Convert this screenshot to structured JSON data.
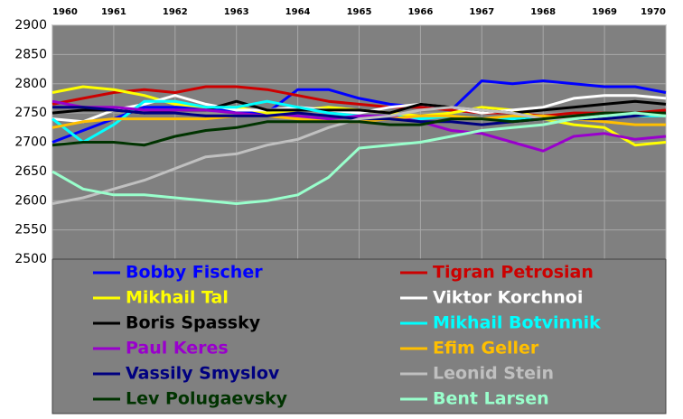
{
  "chart_data": {
    "type": "line",
    "x": [
      1960,
      1960.5,
      1961,
      1961.5,
      1962,
      1962.5,
      1963,
      1963.5,
      1964,
      1964.5,
      1965,
      1965.5,
      1966,
      1966.5,
      1967,
      1967.5,
      1968,
      1968.5,
      1969,
      1969.5,
      1970
    ],
    "xlim": [
      1960,
      1970
    ],
    "xticks": [
      1960,
      1961,
      1962,
      1963,
      1964,
      1965,
      1966,
      1967,
      1968,
      1969,
      1970
    ],
    "ylim": [
      2500,
      2900
    ],
    "yticks": [
      2500,
      2550,
      2600,
      2650,
      2700,
      2750,
      2800,
      2850,
      2900
    ],
    "grid": true,
    "legend": "bottom",
    "series": [
      {
        "name": "Bobby Fischer",
        "color": "#0000ff",
        "values": [
          2700,
          2720,
          2740,
          2760,
          2760,
          2760,
          2750,
          2750,
          2790,
          2790,
          2775,
          2765,
          2760,
          2755,
          2805,
          2800,
          2805,
          2800,
          2795,
          2795,
          2785
        ]
      },
      {
        "name": "Tigran Petrosian",
        "color": "#cc0000",
        "values": [
          2765,
          2775,
          2785,
          2790,
          2785,
          2795,
          2795,
          2790,
          2780,
          2770,
          2765,
          2760,
          2760,
          2755,
          2750,
          2750,
          2745,
          2750,
          2750,
          2750,
          2755
        ]
      },
      {
        "name": "Mikhail Tal",
        "color": "#ffff00",
        "values": [
          2785,
          2795,
          2790,
          2780,
          2765,
          2760,
          2760,
          2750,
          2755,
          2760,
          2755,
          2750,
          2745,
          2750,
          2760,
          2755,
          2740,
          2730,
          2725,
          2695,
          2700
        ]
      },
      {
        "name": "Viktor Korchnoi",
        "color": "#ffffff",
        "values": [
          2740,
          2735,
          2755,
          2765,
          2780,
          2765,
          2755,
          2755,
          2760,
          2755,
          2750,
          2760,
          2765,
          2760,
          2750,
          2755,
          2760,
          2775,
          2780,
          2780,
          2775
        ]
      },
      {
        "name": "Boris Spassky",
        "color": "#000000",
        "values": [
          2750,
          2755,
          2755,
          2750,
          2755,
          2755,
          2770,
          2755,
          2755,
          2755,
          2755,
          2750,
          2765,
          2760,
          2755,
          2750,
          2755,
          2760,
          2765,
          2770,
          2765
        ]
      },
      {
        "name": "Mikhail Botvinnik",
        "color": "#00ffff",
        "values": [
          2740,
          2700,
          2730,
          2770,
          2770,
          2760,
          2760,
          2770,
          2760,
          2750,
          2745,
          2745,
          2740,
          2745,
          2740,
          2740,
          2740,
          2740,
          2745,
          2745,
          2745
        ]
      },
      {
        "name": "Paul Keres",
        "color": "#9900cc",
        "values": [
          2770,
          2760,
          2760,
          2755,
          2755,
          2755,
          2750,
          2745,
          2745,
          2740,
          2745,
          2745,
          2735,
          2720,
          2715,
          2700,
          2685,
          2710,
          2715,
          2705,
          2710
        ]
      },
      {
        "name": "Efim Geller",
        "color": "#ffbf00",
        "values": [
          2725,
          2735,
          2740,
          2740,
          2740,
          2740,
          2745,
          2745,
          2740,
          2735,
          2735,
          2740,
          2745,
          2745,
          2740,
          2745,
          2745,
          2740,
          2735,
          2730,
          2730
        ]
      },
      {
        "name": "Vassily Smyslov",
        "color": "#000080",
        "values": [
          2760,
          2760,
          2755,
          2750,
          2750,
          2745,
          2745,
          2745,
          2750,
          2745,
          2740,
          2740,
          2735,
          2735,
          2730,
          2735,
          2740,
          2740,
          2740,
          2745,
          2750
        ]
      },
      {
        "name": "Leonid Stein",
        "color": "#c0c0c0",
        "values": [
          2595,
          2605,
          2620,
          2635,
          2655,
          2675,
          2680,
          2695,
          2705,
          2725,
          2740,
          2745,
          2755,
          2760,
          2755,
          2750,
          2740,
          2740,
          2745,
          2750,
          2745
        ]
      },
      {
        "name": "Lev Polugaevsky",
        "color": "#003300",
        "values": [
          2695,
          2700,
          2700,
          2695,
          2710,
          2720,
          2725,
          2735,
          2735,
          2735,
          2735,
          2730,
          2730,
          2740,
          2740,
          2735,
          2740,
          2745,
          2750,
          2750,
          2750
        ]
      },
      {
        "name": "Bent Larsen",
        "color": "#99ffcc",
        "values": [
          2650,
          2620,
          2610,
          2610,
          2605,
          2600,
          2595,
          2600,
          2610,
          2640,
          2690,
          2695,
          2700,
          2710,
          2720,
          2725,
          2730,
          2740,
          2745,
          2750,
          2745
        ]
      }
    ]
  }
}
